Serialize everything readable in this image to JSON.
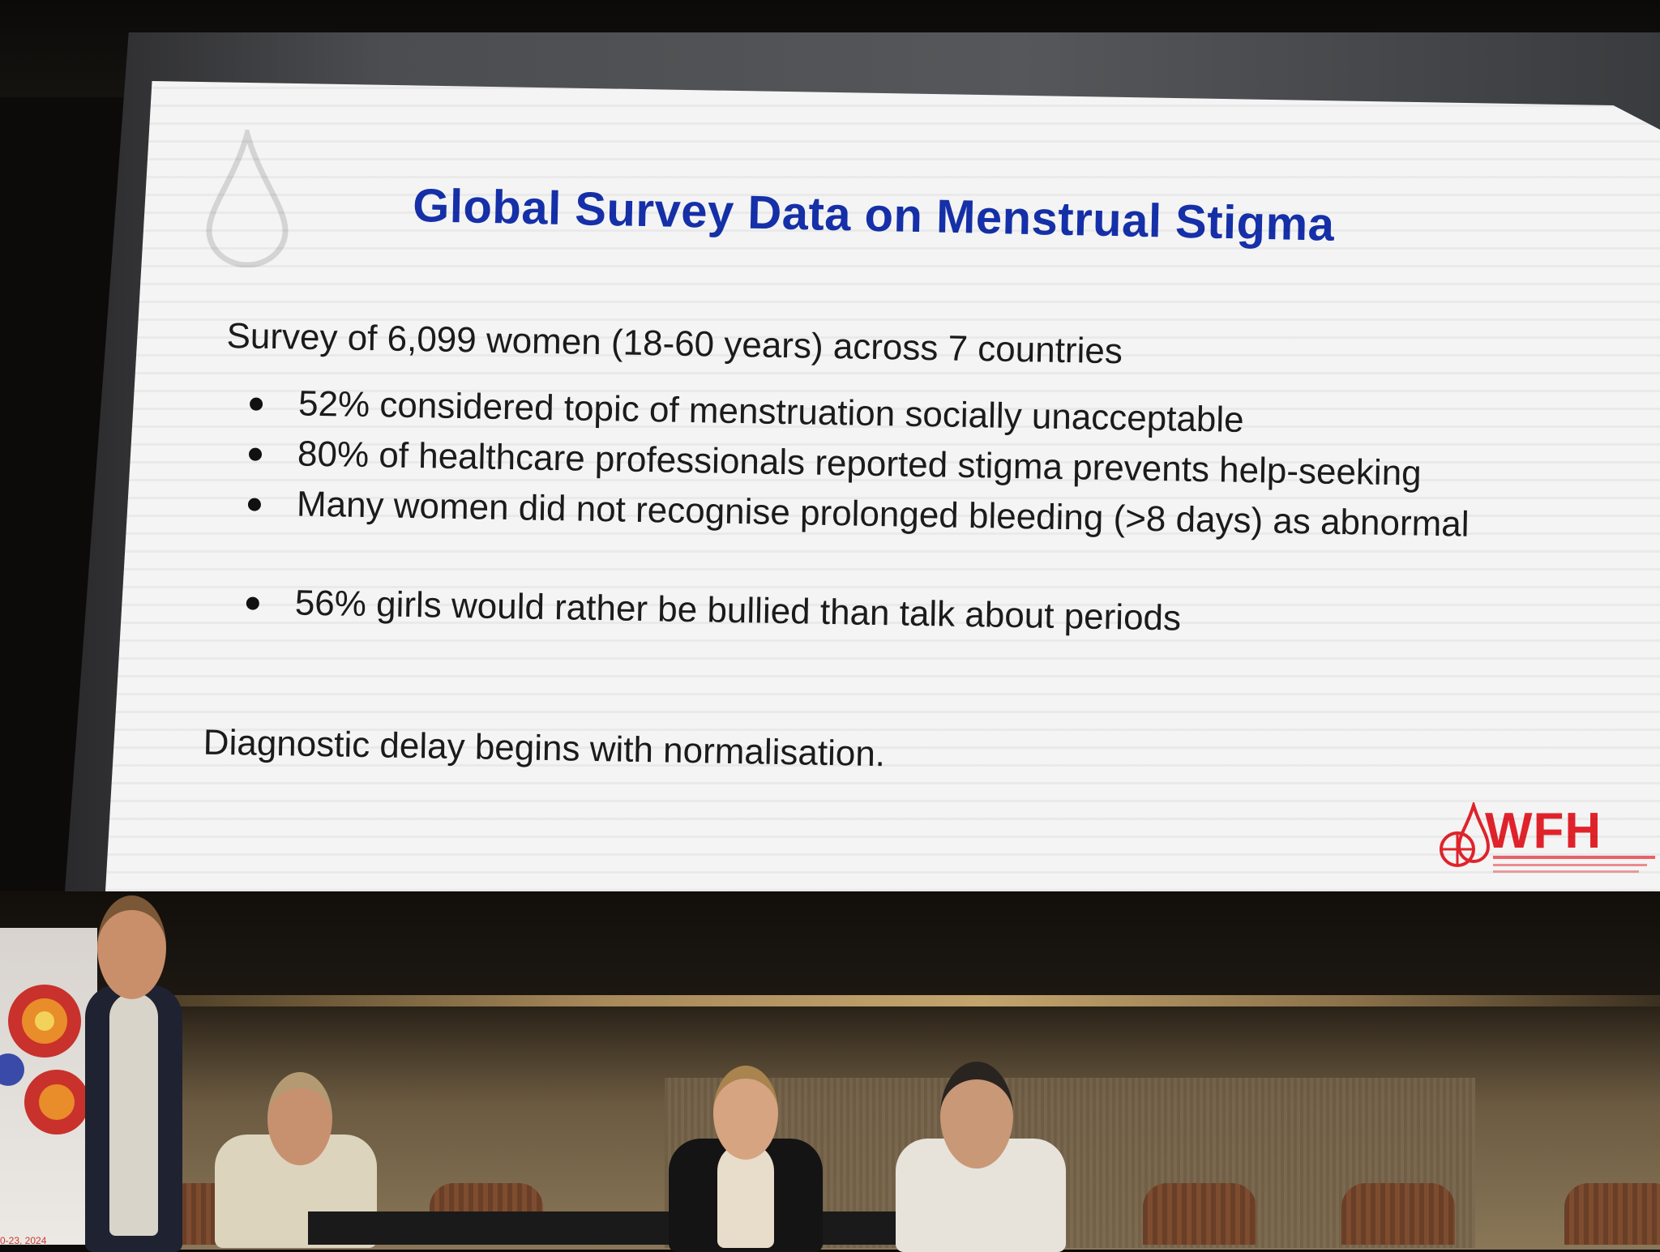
{
  "slide": {
    "title": "Global Survey Data on Menstrual Stigma",
    "intro": "Survey of 6,099 women (18-60 years) across 7 countries",
    "bullets": [
      "52% considered topic of menstruation socially unacceptable",
      "80% of healthcare professionals reported stigma prevents help-seeking",
      "Many women did not recognise prolonged bleeding (>8 days) as abnormal",
      "56% girls would rather be bullied than talk about periods"
    ],
    "conclusion": "Diagnostic delay begins with normalisation.",
    "logo_text": "WFH",
    "title_color": "#1530a8",
    "logo_color": "#e0232b"
  },
  "banner": {
    "date_fragment": "0-23, 2024"
  }
}
